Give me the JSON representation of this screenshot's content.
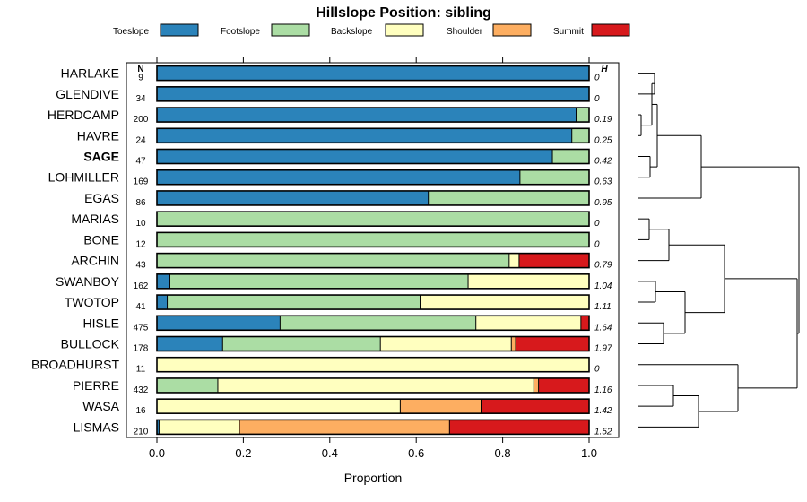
{
  "chart_data": {
    "type": "bar",
    "orientation": "horizontal",
    "stacked": true,
    "title": "Hillslope Position: sibling",
    "xlabel": "Proportion",
    "ylabel": "",
    "xlim": [
      0,
      1
    ],
    "x_ticks": [
      "0.0",
      "0.2",
      "0.4",
      "0.6",
      "0.8",
      "1.0"
    ],
    "n_header": "N",
    "h_header": "H",
    "legend_position": "top",
    "series": [
      {
        "name": "Toeslope",
        "color": "#2b83ba"
      },
      {
        "name": "Footslope",
        "color": "#abdda4"
      },
      {
        "name": "Backslope",
        "color": "#ffffbf"
      },
      {
        "name": "Shoulder",
        "color": "#fdae61"
      },
      {
        "name": "Summit",
        "color": "#d7191c"
      }
    ],
    "categories": [
      {
        "name": "HARLAKE",
        "n": "9",
        "h": "0",
        "bold": false,
        "values": [
          1.0,
          0,
          0,
          0,
          0
        ]
      },
      {
        "name": "GLENDIVE",
        "n": "34",
        "h": "0",
        "bold": false,
        "values": [
          1.0,
          0,
          0,
          0,
          0
        ]
      },
      {
        "name": "HERDCAMP",
        "n": "200",
        "h": "0.19",
        "bold": false,
        "values": [
          0.97,
          0.03,
          0,
          0,
          0
        ]
      },
      {
        "name": "HAVRE",
        "n": "24",
        "h": "0.25",
        "bold": false,
        "values": [
          0.96,
          0.04,
          0,
          0,
          0
        ]
      },
      {
        "name": "SAGE",
        "n": "47",
        "h": "0.42",
        "bold": true,
        "values": [
          0.915,
          0.085,
          0,
          0,
          0
        ]
      },
      {
        "name": "LOHMILLER",
        "n": "169",
        "h": "0.63",
        "bold": false,
        "values": [
          0.84,
          0.16,
          0,
          0,
          0
        ]
      },
      {
        "name": "EGAS",
        "n": "86",
        "h": "0.95",
        "bold": false,
        "values": [
          0.628,
          0.372,
          0,
          0,
          0
        ]
      },
      {
        "name": "MARIAS",
        "n": "10",
        "h": "0",
        "bold": false,
        "values": [
          0,
          1.0,
          0,
          0,
          0
        ]
      },
      {
        "name": "BONE",
        "n": "12",
        "h": "0",
        "bold": false,
        "values": [
          0,
          1.0,
          0,
          0,
          0
        ]
      },
      {
        "name": "ARCHIN",
        "n": "43",
        "h": "0.79",
        "bold": false,
        "values": [
          0,
          0.815,
          0.023,
          0,
          0.162
        ]
      },
      {
        "name": "SWANBOY",
        "n": "162",
        "h": "1.04",
        "bold": false,
        "values": [
          0.03,
          0.69,
          0.28,
          0,
          0
        ]
      },
      {
        "name": "TWOTOP",
        "n": "41",
        "h": "1.11",
        "bold": false,
        "values": [
          0.024,
          0.585,
          0.391,
          0,
          0
        ]
      },
      {
        "name": "HISLE",
        "n": "475",
        "h": "1.64",
        "bold": false,
        "values": [
          0.285,
          0.453,
          0.243,
          0,
          0.019
        ]
      },
      {
        "name": "BULLOCK",
        "n": "178",
        "h": "1.97",
        "bold": false,
        "values": [
          0.152,
          0.365,
          0.303,
          0.01,
          0.17
        ]
      },
      {
        "name": "BROADHURST",
        "n": "11",
        "h": "0",
        "bold": false,
        "values": [
          0,
          0,
          1.0,
          0,
          0
        ]
      },
      {
        "name": "PIERRE",
        "n": "432",
        "h": "1.16",
        "bold": false,
        "values": [
          0,
          0.141,
          0.731,
          0.011,
          0.117
        ]
      },
      {
        "name": "WASA",
        "n": "16",
        "h": "1.42",
        "bold": false,
        "values": [
          0,
          0,
          0.563,
          0.187,
          0.25
        ]
      },
      {
        "name": "LISMAS",
        "n": "210",
        "h": "1.52",
        "bold": false,
        "values": [
          0.005,
          0,
          0.186,
          0.486,
          0.323
        ]
      }
    ],
    "dendrogram": {
      "type": "hierarchical clustering tree",
      "leaf_order": [
        "HARLAKE",
        "GLENDIVE",
        "HERDCAMP",
        "HAVRE",
        "SAGE",
        "LOHMILLER",
        "EGAS",
        "MARIAS",
        "BONE",
        "ARCHIN",
        "SWANBOY",
        "TWOTOP",
        "HISLE",
        "BULLOCK",
        "BROADHURST",
        "PIERRE",
        "WASA",
        "LISMAS"
      ]
    }
  }
}
